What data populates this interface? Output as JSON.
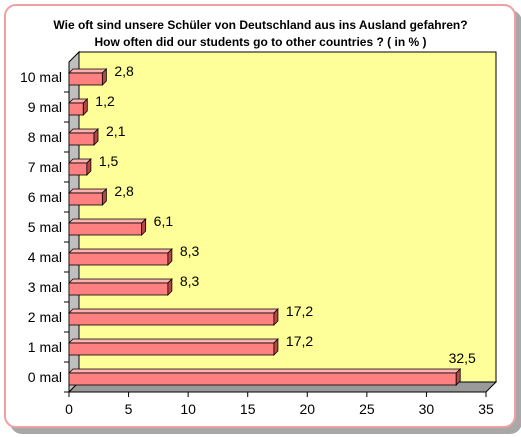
{
  "chart_data": {
    "type": "bar",
    "orientation": "horizontal",
    "title": "Wie oft sind unsere Schüler von Deutschland aus ins Ausland gefahren?",
    "subtitle": "How often did our students go to other countries ? ( in % )",
    "categories": [
      "0 mal",
      "1 mal",
      "2 mal",
      "3 mal",
      "4 mal",
      "5 mal",
      "6 mal",
      "7 mal",
      "8 mal",
      "9 mal",
      "10 mal"
    ],
    "values": [
      32.5,
      17.2,
      17.2,
      8.3,
      8.3,
      6.1,
      2.8,
      1.5,
      2.1,
      1.2,
      2.8
    ],
    "value_labels": [
      "32,5",
      "17,2",
      "17,2",
      "8,3",
      "8,3",
      "6,1",
      "2,8",
      "1,5",
      "2,1",
      "1,2",
      "2,8"
    ],
    "x_ticks": [
      "0",
      "5",
      "10",
      "15",
      "20",
      "25",
      "30",
      "35"
    ],
    "xlim": [
      0,
      35
    ],
    "xlabel": "",
    "ylabel": "",
    "grid": false,
    "legend": "none",
    "colors": {
      "bar": "#ff8080",
      "bar_top": "#ffb0b0",
      "bar_side": "#b84848",
      "plot_back": "#ffff99",
      "plot_wall": "#bfbfbf",
      "plot_floor": "#9a9a9a",
      "frame_border": "#f0a0a0"
    }
  }
}
